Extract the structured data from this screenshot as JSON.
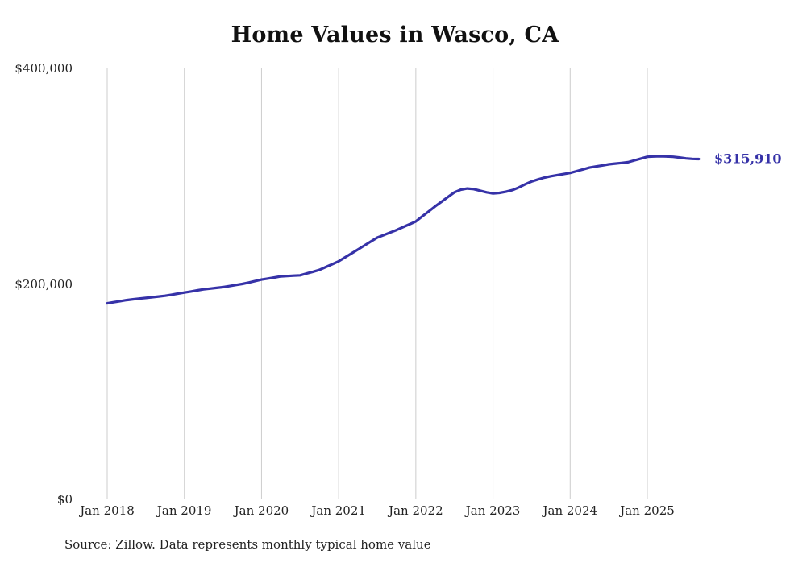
{
  "chart": {
    "title": "Home Values in Wasco, CA",
    "end_label": "$315,910",
    "source": "Source: Zillow. Data represents monthly typical home value",
    "y_ticks": [
      "$0",
      "$200,000",
      "$400,000"
    ],
    "x_ticks": [
      "Jan 2018",
      "Jan 2019",
      "Jan 2020",
      "Jan 2021",
      "Jan 2022",
      "Jan 2023",
      "Jan 2024",
      "Jan 2025"
    ]
  },
  "chart_data": {
    "type": "line",
    "title": "Home Values in Wasco, CA",
    "xlabel": "",
    "ylabel": "",
    "ylim": [
      0,
      400000
    ],
    "x_start": "2018-01",
    "x_end": "2025-09",
    "x_interval": "monthly",
    "x_gridlines": true,
    "y_gridlines": false,
    "legend_position": "none",
    "line_color": "#3632a8",
    "gridline_color": "#cccccc",
    "latest_value": 315910,
    "latest_value_label": "$315,910",
    "values": [
      182000,
      183000,
      184000,
      185000,
      185700,
      186400,
      187000,
      187700,
      188300,
      189000,
      190000,
      191000,
      192000,
      193000,
      194000,
      195000,
      195700,
      196300,
      197000,
      198000,
      199000,
      200000,
      201300,
      202700,
      204000,
      205000,
      206000,
      207000,
      207300,
      207700,
      208000,
      209700,
      211300,
      213000,
      215700,
      218300,
      221000,
      224700,
      228300,
      232000,
      235700,
      239300,
      243000,
      245300,
      247700,
      250000,
      252700,
      255300,
      258000,
      262700,
      267300,
      272000,
      276300,
      280700,
      285000,
      287500,
      288500,
      288000,
      286500,
      285000,
      284000,
      284500,
      285500,
      287000,
      289500,
      292500,
      295000,
      297000,
      298700,
      300000,
      301000,
      302000,
      303000,
      304700,
      306300,
      308000,
      309000,
      310000,
      311000,
      311700,
      312300,
      313000,
      314700,
      316300,
      318000,
      318300,
      318500,
      318300,
      318000,
      317300,
      316500,
      316000,
      315910
    ]
  }
}
